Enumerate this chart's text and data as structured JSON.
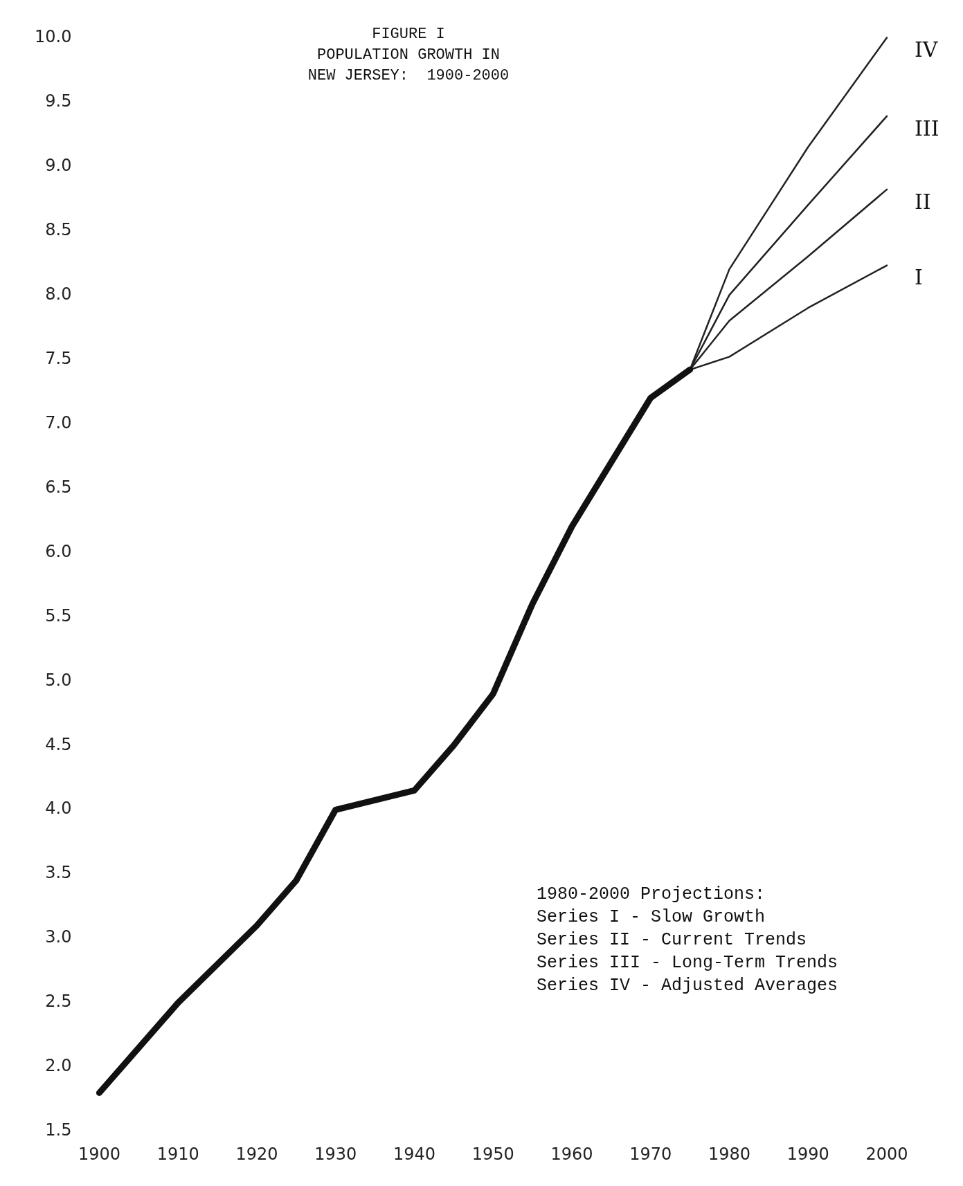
{
  "chart_data": {
    "type": "line",
    "title": "FIGURE I\nPOPULATION GROWTH IN\nNEW JERSEY:  1900-2000",
    "xlim": [
      1900,
      2000
    ],
    "ylim": [
      1.5,
      10
    ],
    "xticks": [
      1900,
      1910,
      1920,
      1930,
      1940,
      1950,
      1960,
      1970,
      1980,
      1990,
      2000
    ],
    "yticks": [
      {
        "value": 1.5,
        "label": "1.5"
      },
      {
        "value": 2,
        "label": "2.0"
      },
      2.5,
      {
        "value": 3,
        "label": "3.0"
      },
      3.5,
      {
        "value": 4,
        "label": "4.0"
      },
      4.5,
      {
        "value": 5,
        "label": "5.0"
      },
      5.5,
      {
        "value": 6,
        "label": "6.0"
      },
      6.5,
      {
        "value": 7,
        "label": "7.0"
      },
      7.5,
      {
        "value": 8,
        "label": "8.0"
      },
      8.5,
      {
        "value": 9,
        "label": "9.0"
      },
      9.5,
      {
        "value": 10,
        "label": "10.0"
      }
    ],
    "grid": false,
    "legend": false,
    "marker": "none",
    "line_style": "solid",
    "series": [
      {
        "color": "#111111",
        "x": [
          1900,
          1910,
          1920,
          1925,
          1930,
          1940,
          1945,
          1950,
          1955,
          1960,
          1965,
          1970,
          1975
        ],
        "values": [
          1.8,
          2.5,
          3.1,
          3.45,
          4.0,
          4.15,
          4.5,
          4.9,
          5.6,
          6.2,
          6.7,
          7.2,
          7.42
        ]
      },
      {
        "name": "I",
        "color": "#222222",
        "x": [
          1975,
          1980,
          1990,
          2000
        ],
        "values": [
          7.42,
          7.52,
          7.9,
          8.23
        ]
      },
      {
        "name": "II",
        "color": "#222222",
        "x": [
          1975,
          1980,
          1990,
          2000
        ],
        "values": [
          7.42,
          7.8,
          8.3,
          8.82
        ]
      },
      {
        "name": "III",
        "color": "#222222",
        "x": [
          1975,
          1980,
          1990,
          2000
        ],
        "values": [
          7.42,
          8.0,
          8.7,
          9.39
        ]
      },
      {
        "name": "IV",
        "color": "#222222",
        "x": [
          1975,
          1980,
          1990,
          2000
        ],
        "values": [
          7.42,
          8.2,
          9.15,
          10.0
        ]
      }
    ],
    "annotations": [
      "1980-2000 Projections:",
      "Series I - Slow Growth",
      "Series II - Current Trends",
      "Series III - Long-Term Trends",
      "Series IV - Adjusted Averages"
    ]
  }
}
